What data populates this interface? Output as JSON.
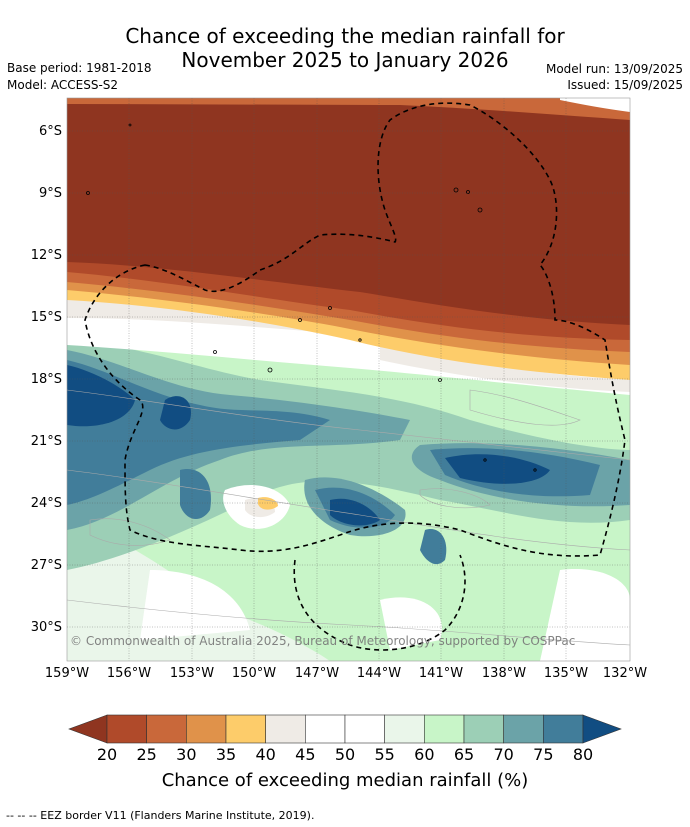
{
  "title": {
    "line1": "Chance of exceeding the median rainfall for",
    "line2": "November 2025 to January 2026"
  },
  "meta": {
    "base_period": "Base period: 1981-2018",
    "model": "Model: ACCESS-S2",
    "model_run": "Model run: 13/09/2025",
    "issued": "Issued: 15/09/2025"
  },
  "axes": {
    "lat_ticks": [
      "6°S",
      "9°S",
      "12°S",
      "15°S",
      "18°S",
      "21°S",
      "24°S",
      "27°S",
      "30°S"
    ],
    "lon_ticks": [
      "159°W",
      "156°W",
      "153°W",
      "150°W",
      "147°W",
      "144°W",
      "141°W",
      "138°W",
      "135°W",
      "132°W"
    ]
  },
  "copyright": "© Commonwealth of Australia 2025, Bureau of Meteorology, supported by COSPPac",
  "colorbar": {
    "title": "Chance of exceeding median rainfall (%)",
    "labels": [
      "20",
      "25",
      "30",
      "35",
      "40",
      "45",
      "50",
      "55",
      "60",
      "65",
      "70",
      "75",
      "80"
    ],
    "colors": [
      "#b04a2a",
      "#c9683a",
      "#e0924a",
      "#fdcc6a",
      "#efebe6",
      "#ffffff",
      "#ffffff",
      "#eaf6ea",
      "#c8f5c8",
      "#9ccfb6",
      "#6ba3a8",
      "#417d9a"
    ],
    "under_color": "#8f3520",
    "over_color": "#114d82"
  },
  "footer": "--  --  -- EEZ border V11 (Flanders Marine Institute, 2019)."
}
